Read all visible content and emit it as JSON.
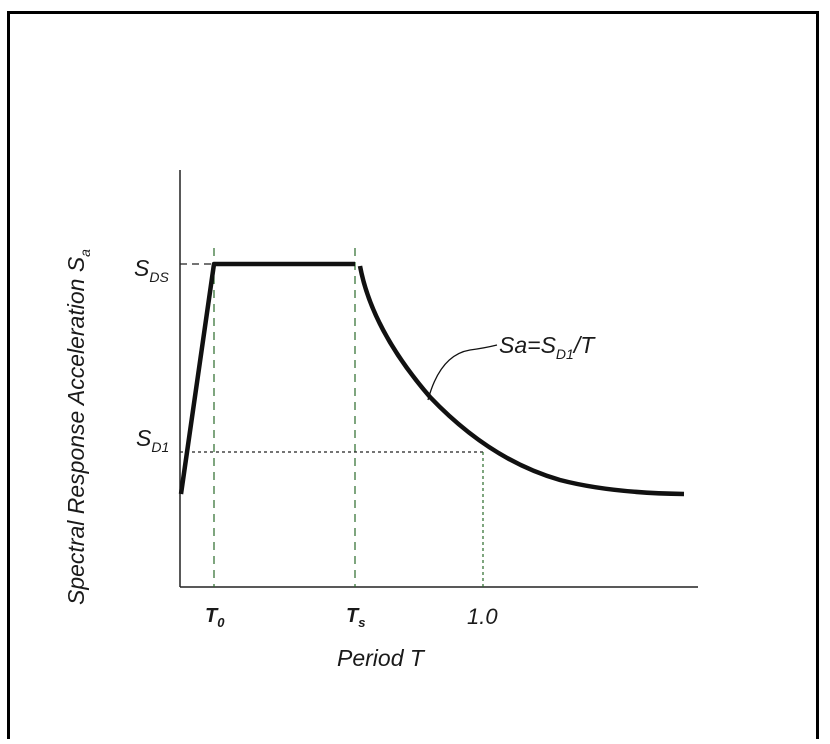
{
  "diagram": {
    "y_axis_label": "Spectral Response Acceleration S",
    "y_axis_label_sub": "a",
    "x_axis_label": "Period T",
    "y_ticks": [
      {
        "main": "S",
        "sub": "DS"
      },
      {
        "main": "S",
        "sub": "D1"
      }
    ],
    "x_ticks": [
      {
        "main": "T",
        "sub": "0"
      },
      {
        "main": "T",
        "sub": "s"
      },
      {
        "main": "1.0",
        "sub": ""
      }
    ],
    "curve_annotation": {
      "prefix": "Sa=S",
      "sub": "D1",
      "suffix": "/T"
    }
  }
}
